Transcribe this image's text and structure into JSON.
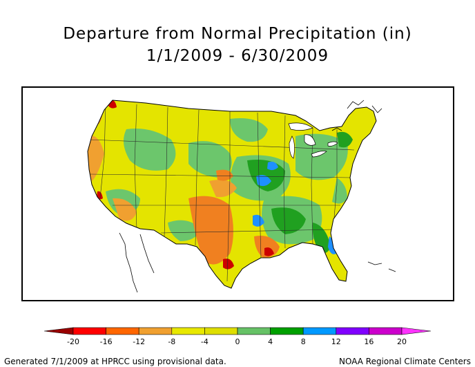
{
  "title": {
    "line1": "Departure from Normal Precipitation (in)",
    "line2": "1/1/2009 - 6/30/2009"
  },
  "legend": {
    "ticks": [
      "-20",
      "-16",
      "-12",
      "-8",
      "-4",
      "0",
      "4",
      "8",
      "12",
      "16",
      "20"
    ],
    "colors": [
      "#990000",
      "#ff0000",
      "#ff6600",
      "#f0a030",
      "#e8e800",
      "#dede00",
      "#66c266",
      "#00a000",
      "#0099ff",
      "#8000ff",
      "#cc00cc",
      "#ff33ff"
    ]
  },
  "footer": {
    "left": "Generated 7/1/2009 at HPRCC using provisional data.",
    "right": "NOAA Regional Climate Centers"
  },
  "palette": {
    "dry_extreme": "#cc0000",
    "dry": "#f08020",
    "dry_mild": "#e8b040",
    "near_normal": "#e4e400",
    "wet_mild": "#6cc66c",
    "wet": "#20a020",
    "wet_extreme": "#1e90ff"
  }
}
